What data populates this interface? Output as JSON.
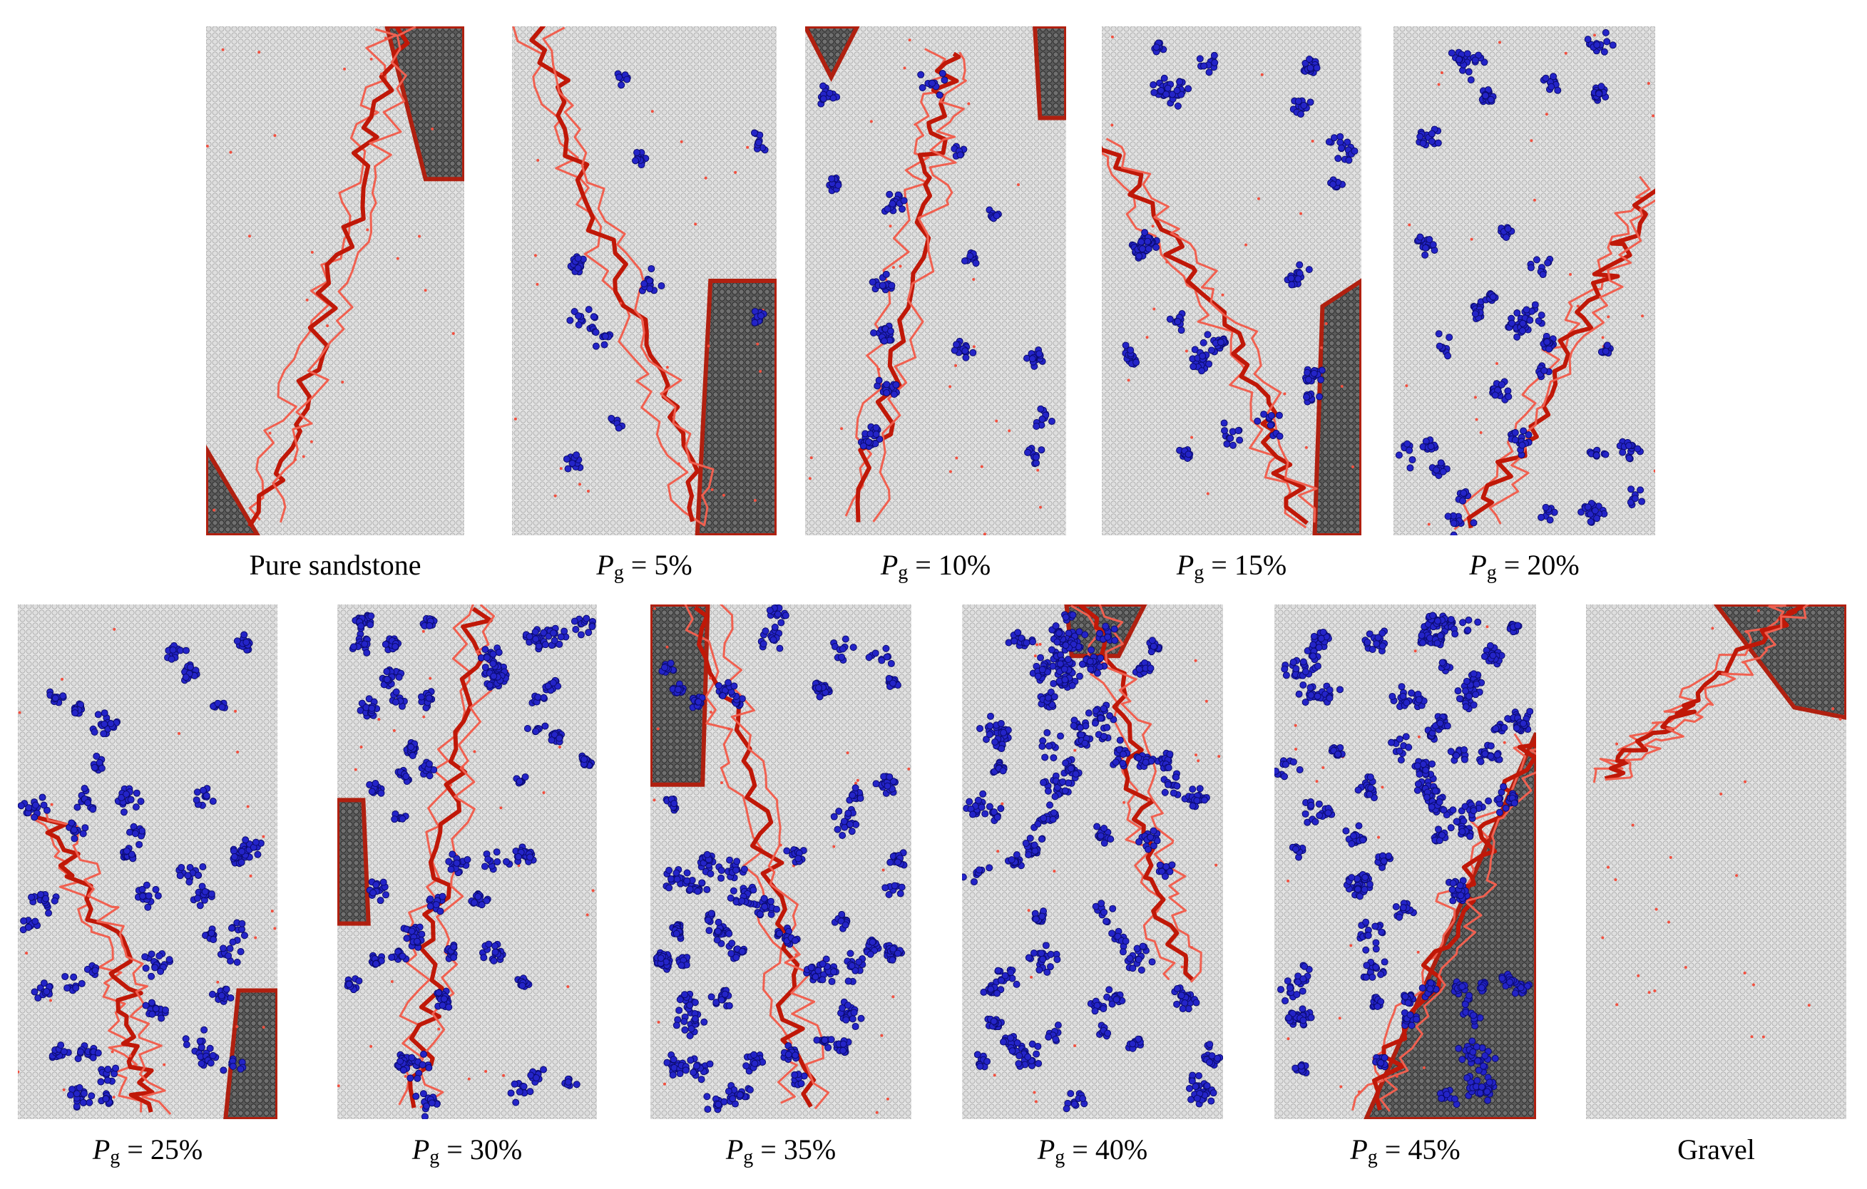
{
  "panels": [
    {
      "label": "Pure sandstone"
    },
    {
      "label": {
        "symbol": "P",
        "subscript": "g",
        "text": "= 5%"
      }
    },
    {
      "label": {
        "symbol": "P",
        "subscript": "g",
        "text": "= 10%"
      }
    },
    {
      "label": {
        "symbol": "P",
        "subscript": "g",
        "text": "= 15%"
      }
    },
    {
      "label": {
        "symbol": "P",
        "subscript": "g",
        "text": "= 20%"
      }
    },
    {
      "label": {
        "symbol": "P",
        "subscript": "g",
        "text": "= 25%"
      }
    },
    {
      "label": {
        "symbol": "P",
        "subscript": "g",
        "text": "= 30%"
      }
    },
    {
      "label": {
        "symbol": "P",
        "subscript": "g",
        "text": "= 35%"
      }
    },
    {
      "label": {
        "symbol": "P",
        "subscript": "g",
        "text": "= 40%"
      }
    },
    {
      "label": {
        "symbol": "P",
        "subscript": "g",
        "text": "= 45%"
      }
    },
    {
      "label": "Gravel"
    }
  ]
}
